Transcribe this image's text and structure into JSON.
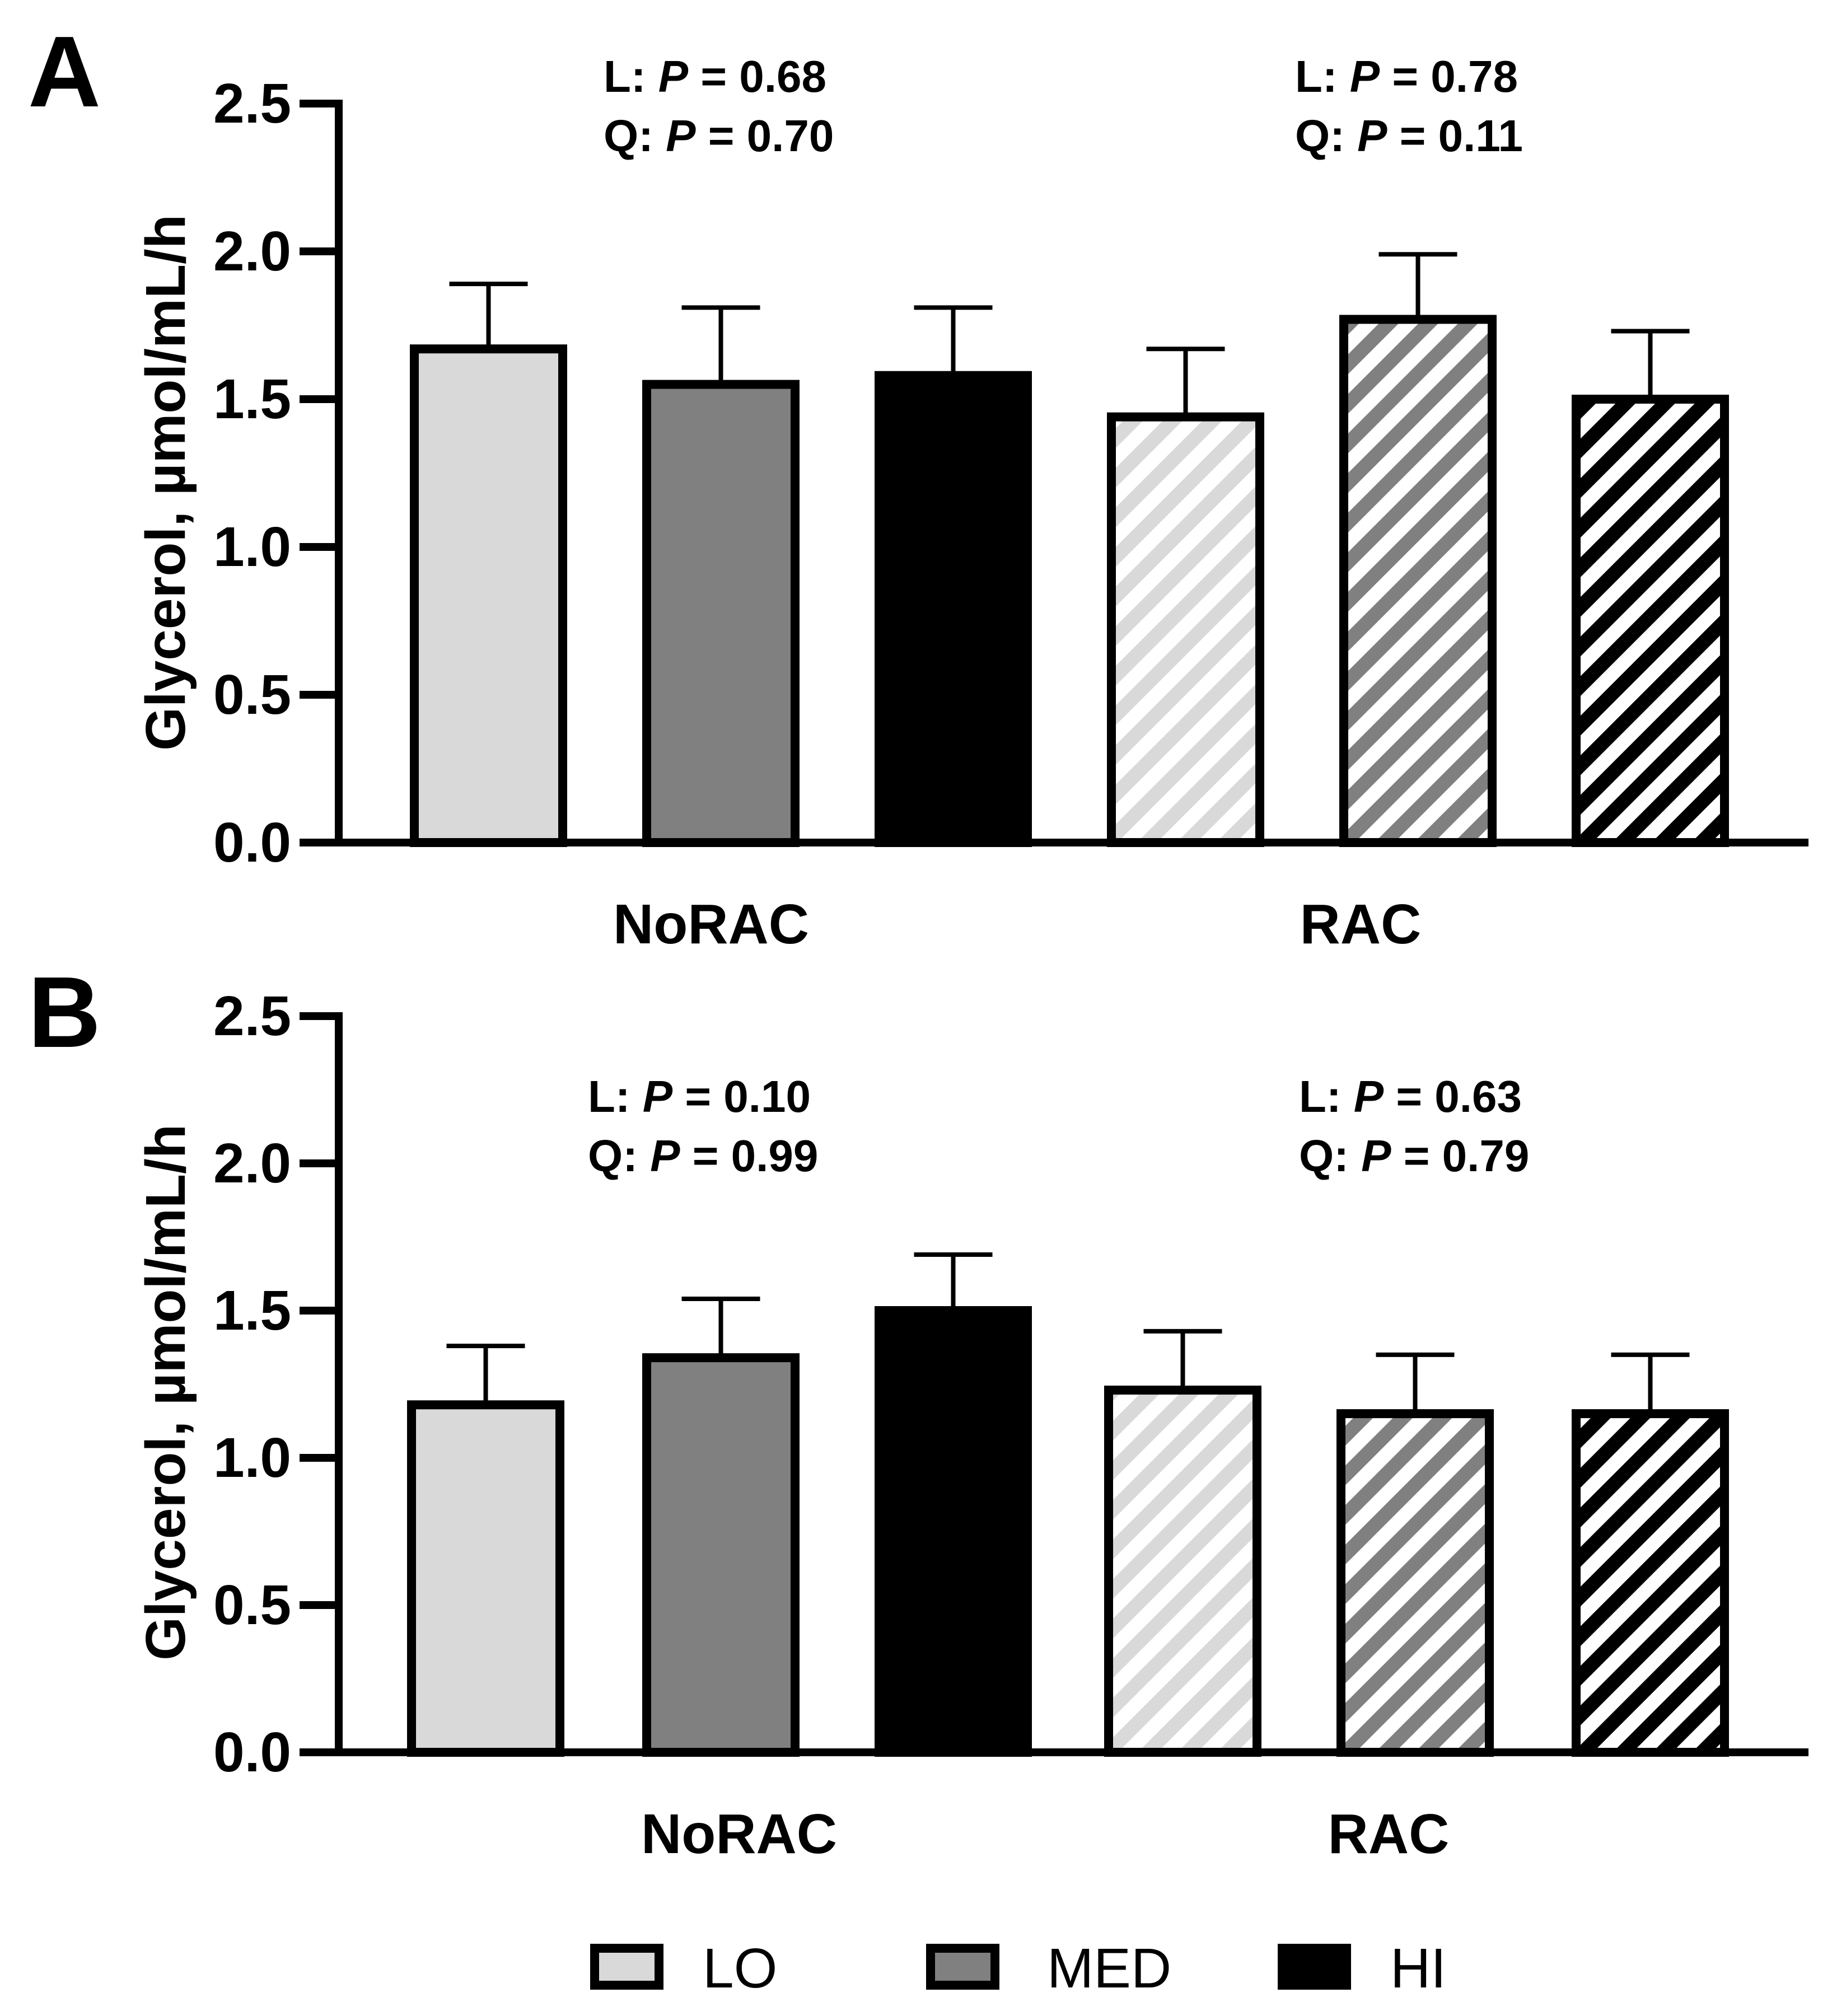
{
  "legend": {
    "items": [
      {
        "label": "LO",
        "color": "#d9d9d9"
      },
      {
        "label": "MED",
        "color": "#808080"
      },
      {
        "label": "HI",
        "color": "#000000"
      }
    ]
  },
  "chart_data": [
    {
      "type": "bar",
      "panel_label": "A",
      "ylabel": "Glycerol, µmol/mL/h",
      "ylim": [
        0,
        2.5
      ],
      "yticks": [
        "0.0",
        "0.5",
        "1.0",
        "1.5",
        "2.0",
        "2.5"
      ],
      "groups": [
        "NoRAC",
        "RAC"
      ],
      "series": [
        {
          "name": "LO",
          "values": [
            1.67,
            1.44
          ],
          "errors": [
            0.22,
            0.23
          ]
        },
        {
          "name": "MED",
          "values": [
            1.55,
            1.77
          ],
          "errors": [
            0.26,
            0.22
          ]
        },
        {
          "name": "HI",
          "values": [
            1.58,
            1.5
          ],
          "errors": [
            0.23,
            0.23
          ]
        }
      ],
      "stats": [
        {
          "l_label": "L",
          "l_p": "0.68",
          "q_label": "Q",
          "q_p": "0.70"
        },
        {
          "l_label": "L",
          "l_p": "0.78",
          "q_label": "Q",
          "q_p": "0.11"
        }
      ]
    },
    {
      "type": "bar",
      "panel_label": "B",
      "ylabel": "Glycerol, µmol/mL/h",
      "ylim": [
        0,
        2.5
      ],
      "yticks": [
        "0.0",
        "0.5",
        "1.0",
        "1.5",
        "2.0",
        "2.5"
      ],
      "groups": [
        "NoRAC",
        "RAC"
      ],
      "series": [
        {
          "name": "LO",
          "values": [
            1.18,
            1.23
          ],
          "errors": [
            0.2,
            0.2
          ]
        },
        {
          "name": "MED",
          "values": [
            1.34,
            1.15
          ],
          "errors": [
            0.2,
            0.2
          ]
        },
        {
          "name": "HI",
          "values": [
            1.5,
            1.15
          ],
          "errors": [
            0.19,
            0.2
          ]
        }
      ],
      "stats": [
        {
          "l_label": "L",
          "l_p": "0.10",
          "q_label": "Q",
          "q_p": "0.99"
        },
        {
          "l_label": "L",
          "l_p": "0.63",
          "q_label": "Q",
          "q_p": "0.79"
        }
      ]
    }
  ]
}
